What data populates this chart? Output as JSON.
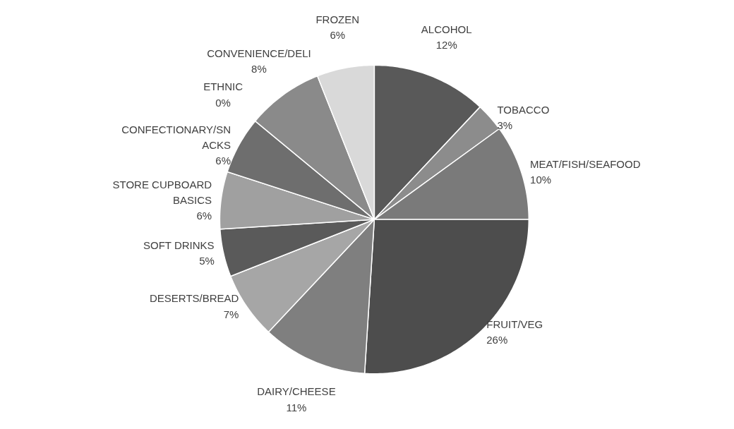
{
  "chart_data": {
    "type": "pie",
    "categories": [
      "ALCOHOL",
      "TOBACCO",
      "MEAT/FISH/SEAFOOD",
      "FRUIT/VEG",
      "DAIRY/CHEESE",
      "DESERTS/BREAD",
      "SOFT DRINKS",
      "STORE CUPBOARD BASICS",
      "CONFECTIONARY/SNACKS",
      "ETHNIC",
      "CONVENIENCE/DELI",
      "FROZEN"
    ],
    "values": [
      12,
      3,
      10,
      26,
      11,
      7,
      5,
      6,
      6,
      0,
      8,
      6
    ],
    "value_labels": [
      "12%",
      "3%",
      "10%",
      "26%",
      "11%",
      "7%",
      "5%",
      "6%",
      "6%",
      "0%",
      "8%",
      "6%"
    ],
    "colors": [
      "#595959",
      "#8c8c8c",
      "#7a7a7a",
      "#4d4d4d",
      "#7f7f7f",
      "#a6a6a6",
      "#5a5a5a",
      "#a0a0a0",
      "#6e6e6e",
      "#bfbfbf",
      "#8a8a8a",
      "#d9d9d9"
    ]
  }
}
